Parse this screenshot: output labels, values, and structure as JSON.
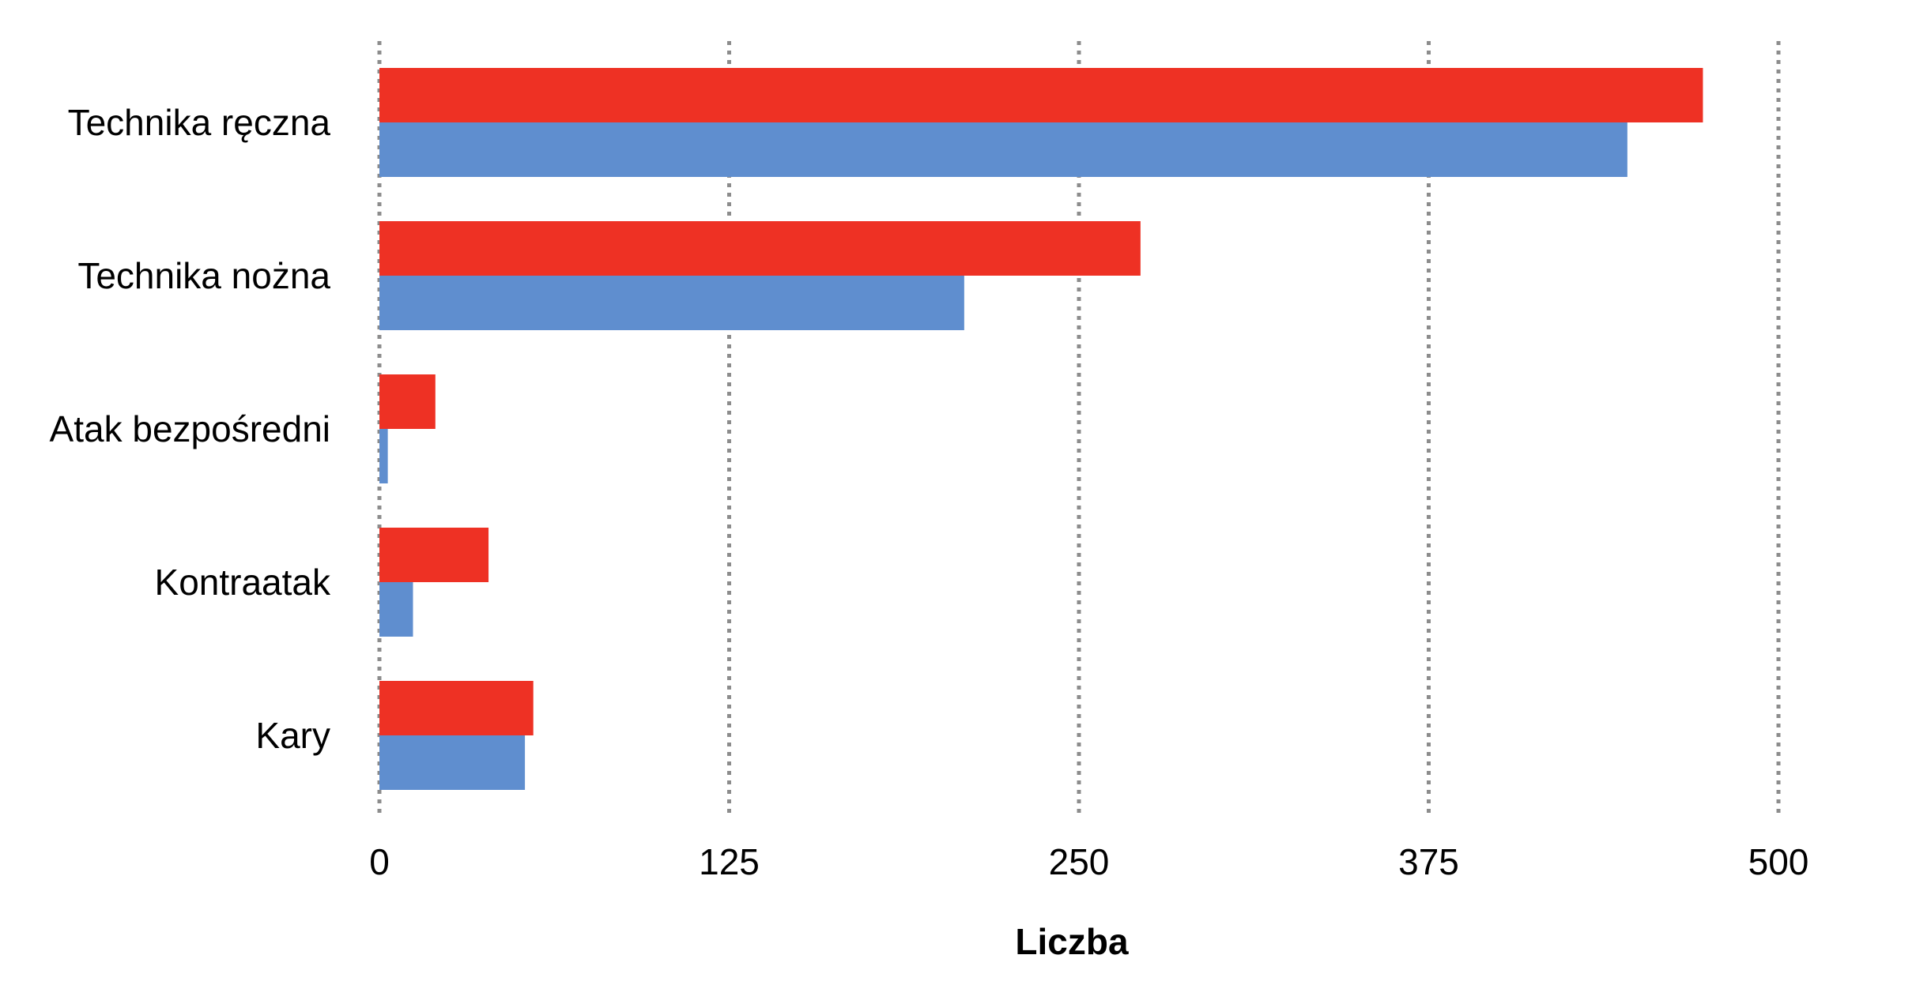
{
  "chart_data": {
    "type": "bar",
    "orientation": "horizontal",
    "categories": [
      "Technika ręczna",
      "Technika nożna",
      "Atak bezpośredni",
      "Kontraatak",
      "Kary"
    ],
    "series": [
      {
        "color": "#EE3124",
        "values": [
          473,
          272,
          20,
          39,
          55
        ]
      },
      {
        "color": "#5F8ECF",
        "values": [
          446,
          209,
          3,
          12,
          52
        ]
      }
    ],
    "xlabel": "Liczba",
    "ylabel": "",
    "xlim": [
      0,
      500
    ],
    "xticks": [
      "0",
      "125",
      "250",
      "375",
      "500"
    ],
    "grid": "vertical dotted",
    "legend": "none"
  }
}
